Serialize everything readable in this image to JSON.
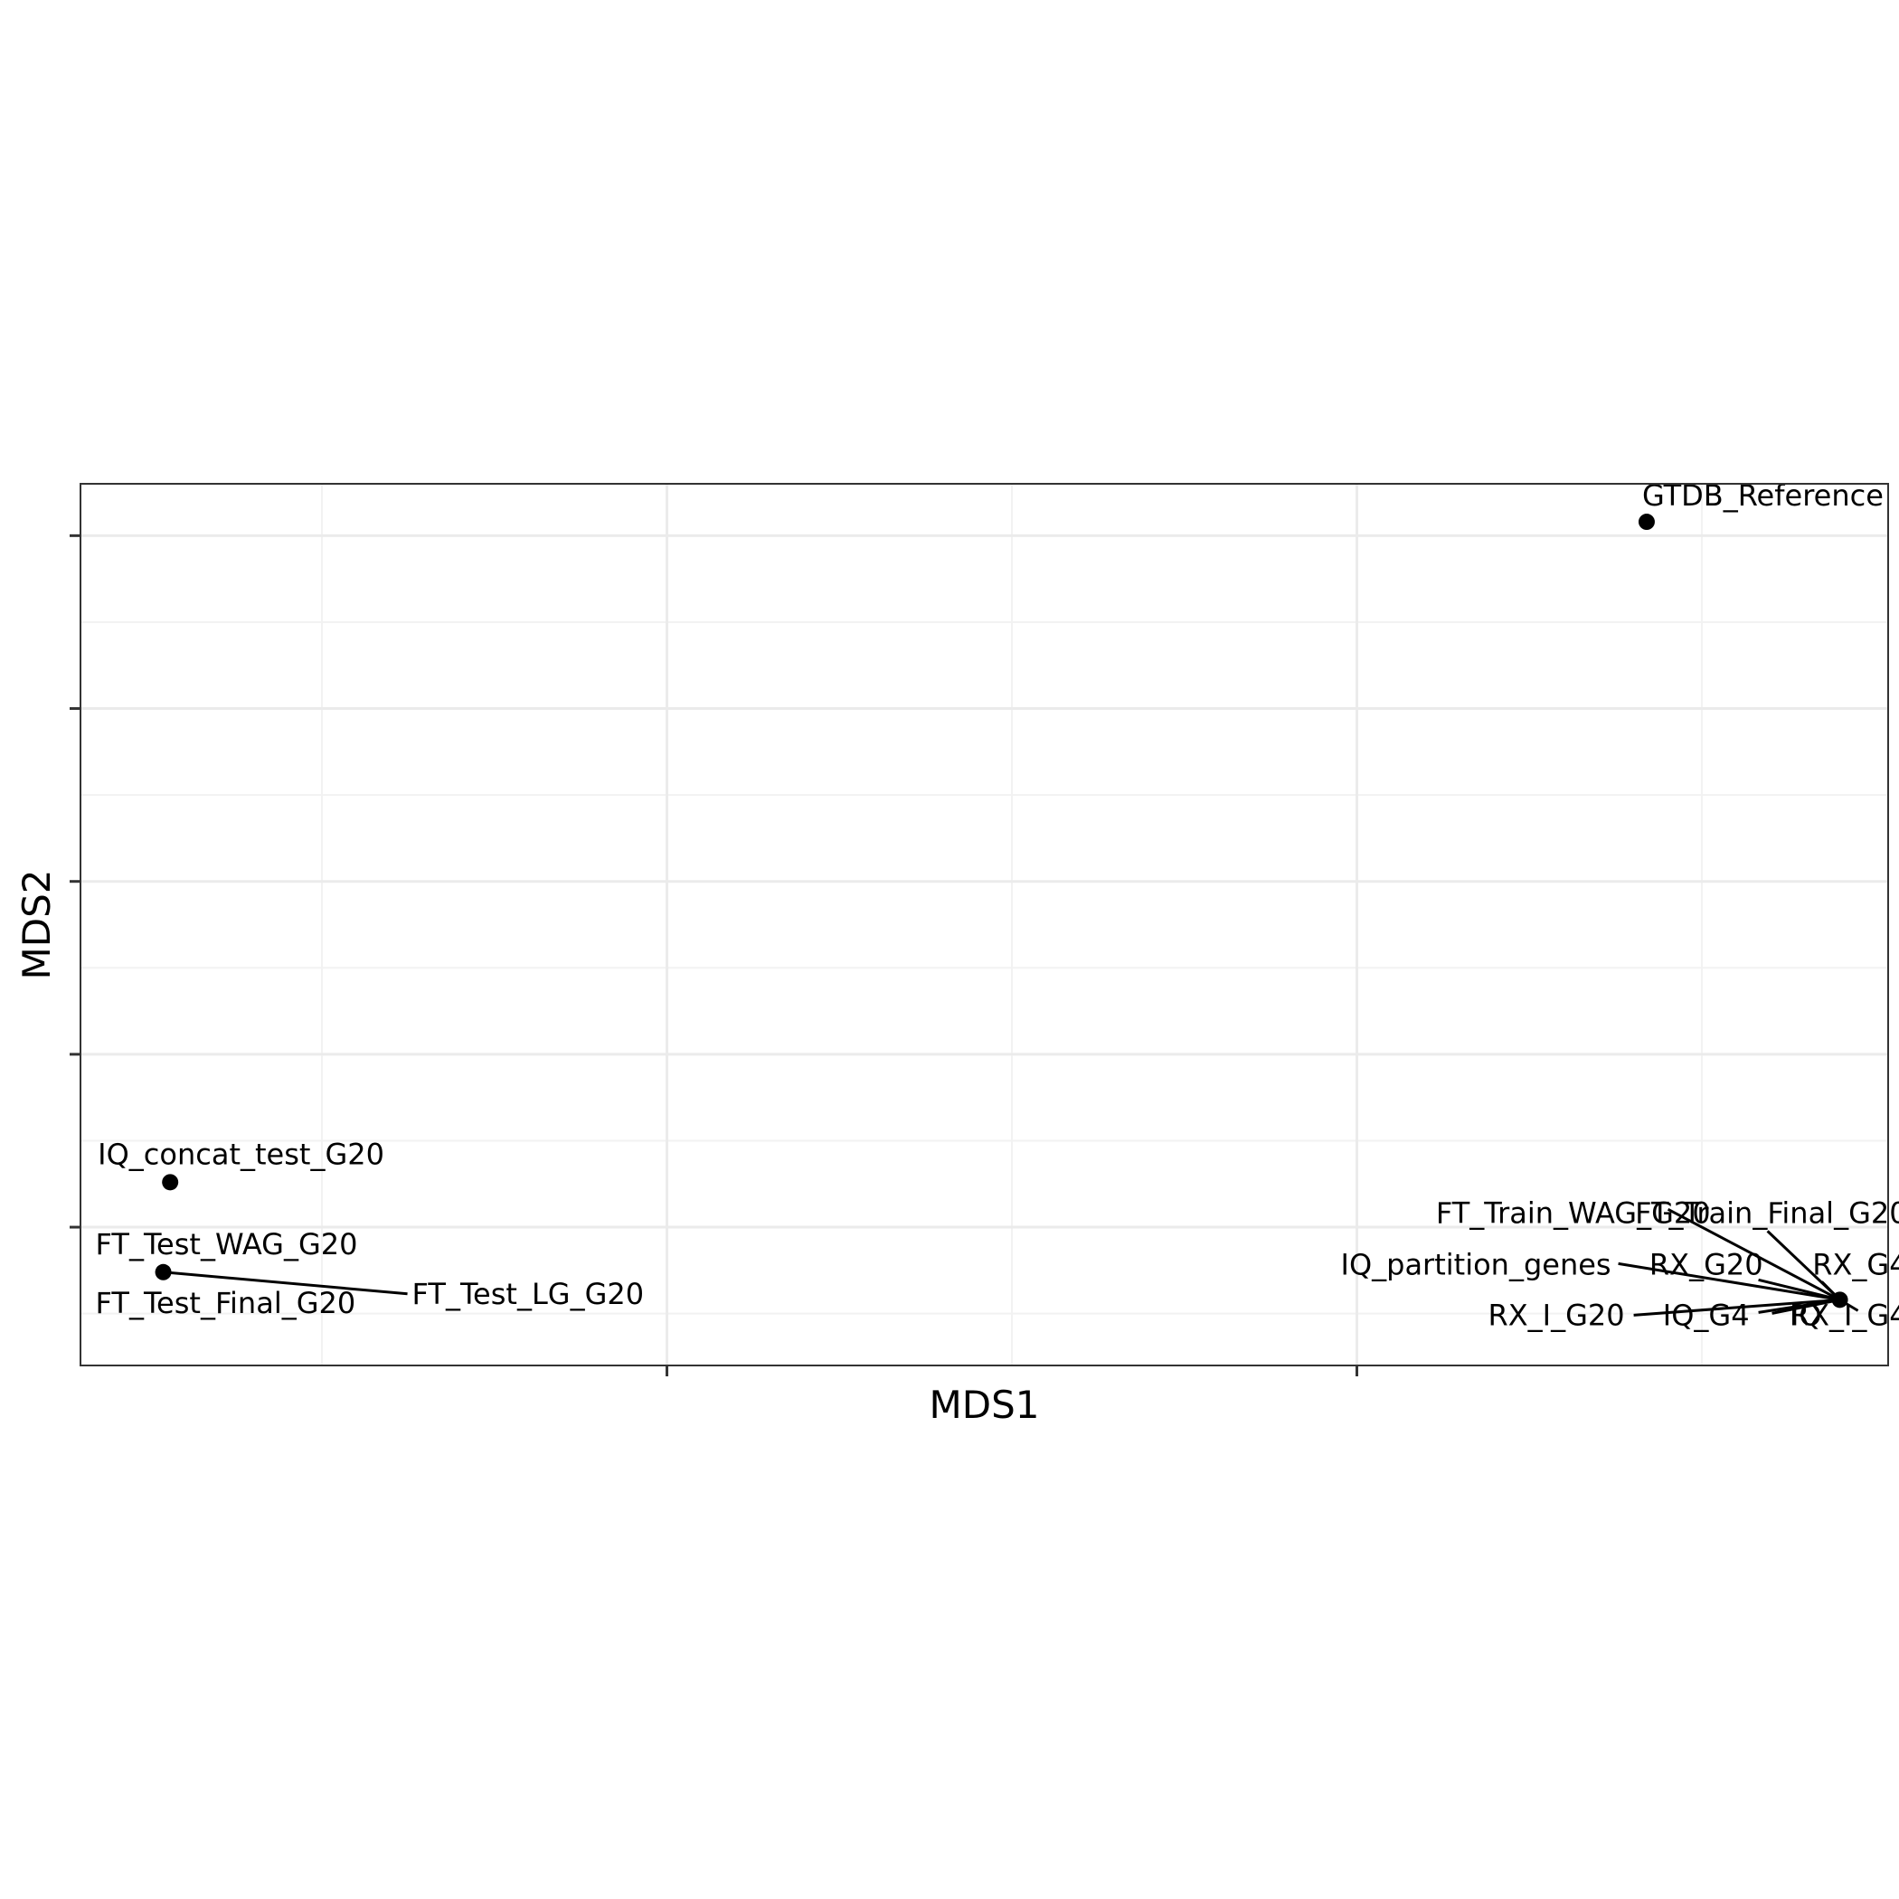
{
  "chart_data": {
    "type": "scatter",
    "title": "",
    "xlabel": "MDS1",
    "ylabel": "MDS2",
    "xlim": [
      -1.35,
      1.27
    ],
    "ylim": [
      -1.4,
      1.15
    ],
    "x_ticks": [
      -0.5,
      0.5
    ],
    "y_ticks": [
      -1.0,
      -0.5,
      0.0,
      0.5,
      1.0
    ],
    "tick_labels_shown": false,
    "grid": true,
    "legend": "none",
    "points": [
      {
        "name": "GTDB_Reference",
        "x": 0.92,
        "y": 1.04
      },
      {
        "name": "IQ_concat_test_G20",
        "x": -1.22,
        "y": -0.87
      },
      {
        "name": "FT_Test_WAG_G20",
        "x": -1.23,
        "y": -1.13
      },
      {
        "name": "FT_Test_Final_G20",
        "x": -1.23,
        "y": -1.13
      },
      {
        "name": "FT_Test_LG_G20",
        "x": -1.23,
        "y": -1.13
      },
      {
        "name": "FT_Train_WAG_G20",
        "x": 1.2,
        "y": -1.21
      },
      {
        "name": "FT_Train_Final_G20",
        "x": 1.2,
        "y": -1.21
      },
      {
        "name": "IQ_partition_genes",
        "x": 1.2,
        "y": -1.21
      },
      {
        "name": "RX_G20",
        "x": 1.2,
        "y": -1.21
      },
      {
        "name": "RX_G4",
        "x": 1.2,
        "y": -1.21
      },
      {
        "name": "RX_I_G20",
        "x": 1.2,
        "y": -1.21
      },
      {
        "name": "IQ_G4",
        "x": 1.2,
        "y": -1.21
      },
      {
        "name": "IQ",
        "x": 1.2,
        "y": -1.21
      },
      {
        "name": "RX_I_G4",
        "x": 1.2,
        "y": -1.21
      }
    ],
    "label_style": "repel",
    "colors": {
      "point": "#000000",
      "panel_border": "#333333",
      "grid_major": "#ebebeb",
      "grid_minor": "#f2f2f2",
      "background": "#ffffff"
    }
  }
}
